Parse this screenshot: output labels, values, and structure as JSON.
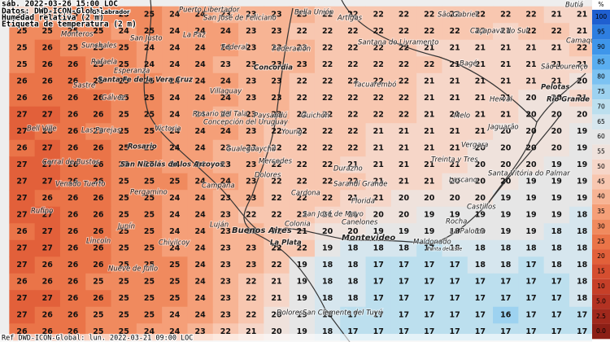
{
  "header": {
    "lines": [
      "sáb. 2022-03-26 15:00 LOC",
      "Datos: DWD-ICON-Global",
      "Humedad relativa (2 m)",
      "Etiqueta de temperatura (2 m)"
    ],
    "author": "G. Labrador"
  },
  "footer": "Ref DWD-ICON-Global: lun. 2022-03-21 09:00 LOC",
  "colorbar": {
    "unit": "%",
    "labels": [
      "100",
      "95",
      "90",
      "85",
      "80",
      "75",
      "70",
      "65",
      "60",
      "55",
      "50",
      "45",
      "40",
      "35",
      "30",
      "25",
      "20",
      "15",
      "10",
      "5.0",
      "2.5",
      "0.0"
    ],
    "colors": [
      "#1f5fd0",
      "#2e7ee0",
      "#3e96ea",
      "#5aaef0",
      "#7cc2f2",
      "#9dd2f0",
      "#bcdfee",
      "#d6e6ee",
      "#e6e6e6",
      "#efe2dc",
      "#f6d6c8",
      "#f8c7b0",
      "#f7b494",
      "#f59f78",
      "#f08a5e",
      "#ea7448",
      "#e2603a",
      "#d54e30",
      "#c63f28",
      "#b33222",
      "#a0281c",
      "#8c1f16"
    ]
  },
  "places": [
    "Puerto Libertador",
    "San José de Feliciano",
    "Bella Unión",
    "Artigas",
    "São Gabriel",
    "Butiá",
    "Monteros",
    "San Justo",
    "La Paz",
    "Caçapava do Sul",
    "Sunchales",
    "Rafaela",
    "Esperanza",
    "Santa Fe de la Vera Cruz",
    "Federal",
    "Federación",
    "Santana do Livramento",
    "Concordia",
    "Bagé",
    "Camaquã",
    "São Lourenço",
    "Sastre",
    "Gálvez",
    "Tacuarembó",
    "Herval",
    "Pelotas",
    "Rio Grande",
    "Villaguay",
    "Melo",
    "Rosario del Tala",
    "Paysandú",
    "Guichón",
    "Concepción del Uruguay",
    "Jaguarão",
    "Victoria",
    "Bell Ville",
    "Las Parejas",
    "Young",
    "Rosario",
    "Gualeguaychú",
    "Vergara",
    "Treinta y Tres",
    "Corral de Bustos",
    "San Nicolás de los Arroyos",
    "Mercedes",
    "Durazno",
    "Dolores",
    "Santa Vitória do Palmar",
    "Lascano",
    "Venado Tuerto",
    "Pergamino",
    "Cardona",
    "Sarandí Grande",
    "Campana",
    "Florida",
    "Castillos",
    "Rufino",
    "Junín",
    "Luján",
    "Buenos Aires",
    "Colonia",
    "San José de Mayo",
    "Canelones",
    "Rocha",
    "Montevideo",
    "La Paloma",
    "Maldonado",
    "Chivilcoy",
    "La Plata",
    "Lincoln",
    "Nueve de Julio",
    "Dolores",
    "San Clemente del Tuyú",
    "Punta del Este"
  ],
  "temperature_grid": [
    [
      21,
      24,
      25,
      25,
      25,
      25,
      24,
      24,
      23,
      23,
      23,
      23,
      22,
      22,
      22,
      22,
      22,
      22,
      22,
      22,
      22,
      21,
      21
    ],
    [
      25,
      25,
      25,
      25,
      24,
      25,
      24,
      24,
      24,
      23,
      23,
      22,
      22,
      22,
      22,
      22,
      22,
      22,
      22,
      21,
      22,
      22,
      21
    ],
    [
      25,
      26,
      25,
      25,
      25,
      24,
      24,
      24,
      24,
      23,
      23,
      23,
      22,
      22,
      22,
      22,
      21,
      21,
      21,
      21,
      21,
      21,
      22
    ],
    [
      25,
      26,
      26,
      25,
      25,
      24,
      24,
      24,
      23,
      23,
      23,
      23,
      22,
      22,
      22,
      22,
      22,
      21,
      21,
      21,
      21,
      21,
      21
    ],
    [
      26,
      26,
      26,
      25,
      25,
      25,
      24,
      24,
      24,
      23,
      23,
      22,
      22,
      22,
      22,
      22,
      21,
      21,
      21,
      21,
      21,
      21,
      20
    ],
    [
      26,
      26,
      26,
      26,
      25,
      25,
      24,
      24,
      24,
      23,
      23,
      22,
      22,
      22,
      22,
      22,
      21,
      21,
      21,
      21,
      20,
      20,
      21
    ],
    [
      27,
      27,
      26,
      26,
      25,
      25,
      24,
      24,
      23,
      23,
      23,
      22,
      22,
      22,
      22,
      22,
      21,
      21,
      21,
      21,
      20,
      20,
      20
    ],
    [
      27,
      26,
      26,
      25,
      25,
      25,
      24,
      24,
      24,
      23,
      22,
      22,
      22,
      22,
      21,
      21,
      21,
      21,
      21,
      20,
      20,
      20,
      19
    ],
    [
      26,
      27,
      26,
      26,
      25,
      25,
      24,
      24,
      23,
      23,
      22,
      22,
      22,
      22,
      21,
      21,
      21,
      21,
      20,
      20,
      20,
      20,
      19
    ],
    [
      27,
      27,
      26,
      26,
      25,
      25,
      24,
      24,
      23,
      23,
      22,
      22,
      22,
      21,
      21,
      21,
      21,
      21,
      20,
      20,
      20,
      19,
      19
    ],
    [
      27,
      27,
      26,
      26,
      25,
      25,
      25,
      24,
      24,
      23,
      22,
      22,
      22,
      22,
      21,
      21,
      21,
      20,
      20,
      20,
      19,
      19,
      19
    ],
    [
      27,
      26,
      26,
      26,
      25,
      25,
      24,
      24,
      23,
      23,
      22,
      22,
      22,
      21,
      21,
      20,
      20,
      20,
      20,
      19,
      19,
      19,
      19
    ],
    [
      27,
      27,
      26,
      26,
      25,
      25,
      24,
      24,
      23,
      22,
      22,
      22,
      21,
      21,
      20,
      20,
      19,
      19,
      19,
      19,
      19,
      19,
      18
    ],
    [
      26,
      27,
      26,
      26,
      25,
      25,
      24,
      24,
      23,
      23,
      22,
      21,
      20,
      20,
      19,
      19,
      19,
      19,
      19,
      19,
      19,
      18,
      18
    ],
    [
      27,
      27,
      26,
      26,
      25,
      25,
      24,
      24,
      23,
      23,
      22,
      22,
      19,
      18,
      18,
      18,
      17,
      18,
      18,
      18,
      18,
      18,
      18
    ],
    [
      27,
      26,
      26,
      26,
      25,
      25,
      25,
      24,
      23,
      23,
      22,
      19,
      18,
      18,
      17,
      17,
      17,
      17,
      18,
      18,
      17,
      18,
      18
    ],
    [
      26,
      26,
      26,
      25,
      25,
      25,
      25,
      24,
      23,
      22,
      21,
      19,
      18,
      18,
      17,
      17,
      17,
      17,
      17,
      17,
      17,
      17,
      18
    ],
    [
      27,
      27,
      26,
      26,
      25,
      25,
      25,
      24,
      23,
      22,
      21,
      19,
      18,
      18,
      17,
      17,
      17,
      17,
      17,
      17,
      17,
      17,
      18
    ],
    [
      27,
      26,
      26,
      25,
      25,
      25,
      24,
      24,
      23,
      22,
      20,
      19,
      18,
      17,
      17,
      17,
      17,
      17,
      17,
      16,
      17,
      17,
      17
    ],
    [
      26,
      26,
      26,
      25,
      25,
      24,
      24,
      23,
      22,
      21,
      20,
      19,
      18,
      17,
      17,
      17,
      17,
      17,
      17,
      17,
      17,
      17,
      17
    ]
  ]
}
